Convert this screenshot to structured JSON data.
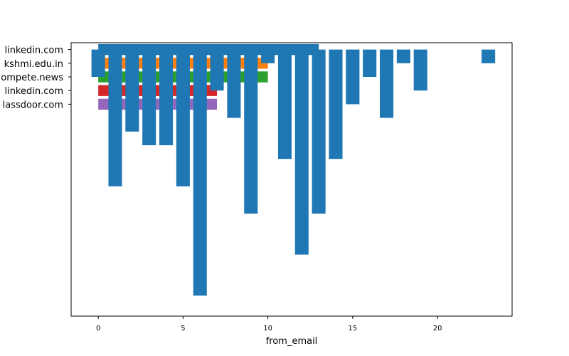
{
  "chart_data": {
    "type": "bar",
    "xlabel": "from_email",
    "xlim": [
      -1.6,
      24.4
    ],
    "ylim": [
      -0.5,
      19.5
    ],
    "x_ticks": [
      0,
      5,
      10,
      15,
      20
    ],
    "y_categories": [
      "linkedin.com",
      "kshmi.edu.in",
      "ompete.news",
      "linkedin.com",
      "lassdoor.com"
    ],
    "horizontal_series": [
      {
        "category": "linkedin.com",
        "value": 13,
        "color": "#1f77b4"
      },
      {
        "category": "kshmi.edu.in",
        "value": 10,
        "color": "#ff7f0e"
      },
      {
        "category": "ompete.news",
        "value": 10,
        "color": "#2ca02c"
      },
      {
        "category": "linkedin.com",
        "value": 7,
        "color": "#d62728"
      },
      {
        "category": "lassdoor.com",
        "value": 7,
        "color": "#9467bd"
      }
    ],
    "vertical_series": {
      "color": "#1f77b4",
      "x": [
        0,
        1,
        2,
        3,
        4,
        5,
        6,
        7,
        8,
        9,
        10,
        11,
        12,
        13,
        14,
        15,
        16,
        17,
        18,
        19,
        23
      ],
      "values": [
        2,
        10,
        6,
        7,
        7,
        10,
        18,
        3,
        5,
        12,
        1,
        8,
        15,
        12,
        8,
        4,
        2,
        5,
        1,
        3,
        1
      ]
    }
  }
}
